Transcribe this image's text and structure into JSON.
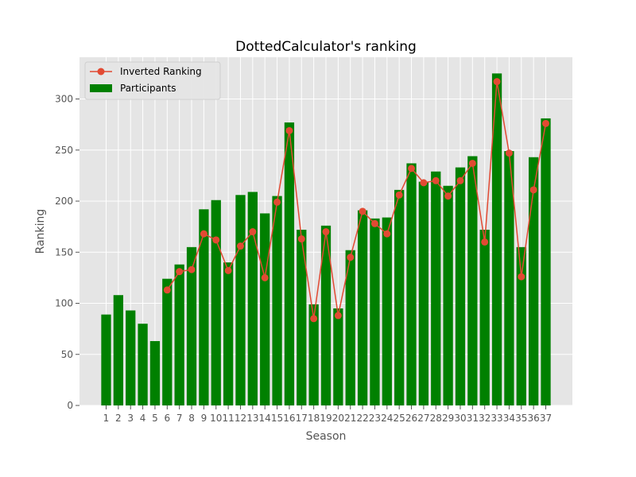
{
  "chart_data": {
    "type": "bar",
    "title": "DottedCalculator's ranking",
    "xlabel": "Season",
    "ylabel": "Ranking",
    "ylim": [
      0,
      340
    ],
    "yticks": [
      0,
      50,
      100,
      150,
      200,
      250,
      300
    ],
    "grid": true,
    "legend_position": "top-left",
    "categories": [
      "1",
      "2",
      "3",
      "4",
      "5",
      "6",
      "7",
      "8",
      "9",
      "10",
      "11",
      "12",
      "13",
      "14",
      "15",
      "16",
      "17",
      "18",
      "19",
      "20",
      "21",
      "22",
      "23",
      "24",
      "25",
      "26",
      "27",
      "28",
      "29",
      "30",
      "31",
      "32",
      "33",
      "34",
      "35",
      "36",
      "37"
    ],
    "series": [
      {
        "name": "Participants",
        "kind": "bar",
        "color": "#008000",
        "values": [
          89,
          108,
          93,
          80,
          63,
          124,
          138,
          155,
          192,
          201,
          140,
          206,
          209,
          188,
          205,
          277,
          172,
          99,
          176,
          95,
          152,
          191,
          183,
          184,
          211,
          237,
          219,
          229,
          215,
          233,
          244,
          172,
          325,
          249,
          155,
          243,
          281
        ]
      },
      {
        "name": "Inverted Ranking",
        "kind": "line",
        "color": "#E24A33",
        "values": [
          null,
          null,
          null,
          null,
          null,
          113,
          131,
          133,
          168,
          162,
          132,
          156,
          170,
          125,
          199,
          269,
          163,
          85,
          170,
          88,
          145,
          190,
          178,
          168,
          206,
          232,
          218,
          220,
          205,
          220,
          237,
          160,
          317,
          247,
          126,
          211,
          276
        ]
      }
    ]
  }
}
